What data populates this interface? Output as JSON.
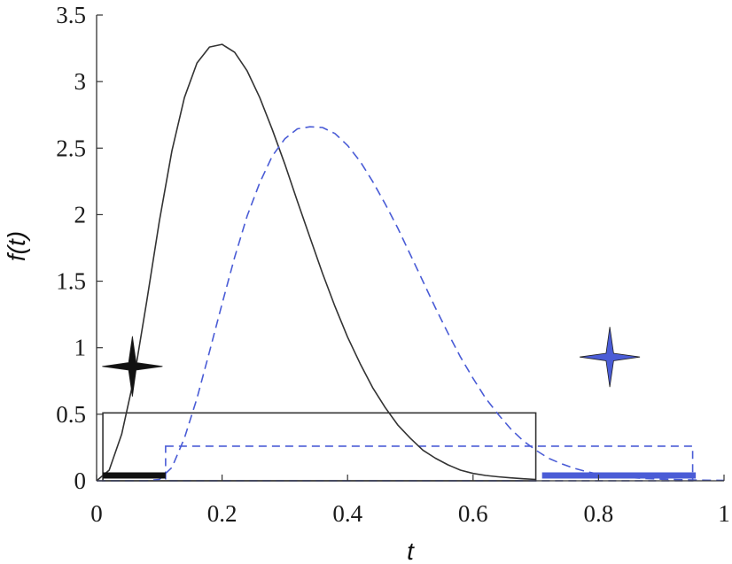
{
  "chart_data": {
    "type": "line",
    "xlabel": "t",
    "ylabel": "f(t)",
    "xlim": [
      0,
      1
    ],
    "ylim": [
      0,
      3.5
    ],
    "x_ticks": [
      "0",
      "0.2",
      "0.4",
      "0.6",
      "0.8",
      "1"
    ],
    "y_ticks": [
      "0",
      "0.5",
      "1",
      "1.5",
      "2",
      "2.5",
      "3",
      "3.5"
    ],
    "series": [
      {
        "style": "solid",
        "color": "#333333",
        "x": [
          0.0,
          0.02,
          0.04,
          0.06,
          0.08,
          0.1,
          0.12,
          0.14,
          0.16,
          0.18,
          0.2,
          0.22,
          0.24,
          0.26,
          0.28,
          0.3,
          0.32,
          0.34,
          0.36,
          0.38,
          0.4,
          0.42,
          0.44,
          0.46,
          0.48,
          0.5,
          0.52,
          0.54,
          0.56,
          0.58,
          0.6,
          0.62,
          0.64,
          0.66,
          0.68,
          0.7
        ],
        "y": [
          0.0,
          0.08,
          0.35,
          0.78,
          1.35,
          1.95,
          2.48,
          2.88,
          3.14,
          3.26,
          3.28,
          3.22,
          3.08,
          2.88,
          2.64,
          2.38,
          2.1,
          1.83,
          1.56,
          1.31,
          1.08,
          0.88,
          0.7,
          0.55,
          0.42,
          0.32,
          0.23,
          0.17,
          0.12,
          0.08,
          0.055,
          0.04,
          0.03,
          0.022,
          0.015,
          0.01
        ]
      },
      {
        "style": "dashed",
        "color": "#4a5cd6",
        "x": [
          0.0,
          0.04,
          0.08,
          0.1,
          0.12,
          0.14,
          0.16,
          0.18,
          0.2,
          0.22,
          0.24,
          0.26,
          0.28,
          0.3,
          0.32,
          0.34,
          0.36,
          0.38,
          0.4,
          0.42,
          0.44,
          0.46,
          0.48,
          0.5,
          0.52,
          0.54,
          0.56,
          0.58,
          0.6,
          0.62,
          0.64,
          0.66,
          0.68,
          0.7,
          0.72,
          0.74,
          0.76,
          0.78,
          0.8,
          0.82,
          0.84,
          0.86,
          0.88,
          0.9,
          0.92,
          0.94,
          0.96,
          0.98,
          1.0
        ],
        "y": [
          0.0,
          0.0,
          0.0,
          0.01,
          0.1,
          0.32,
          0.62,
          0.97,
          1.33,
          1.68,
          1.99,
          2.24,
          2.44,
          2.57,
          2.645,
          2.66,
          2.655,
          2.61,
          2.52,
          2.4,
          2.25,
          2.08,
          1.9,
          1.7,
          1.5,
          1.3,
          1.11,
          0.93,
          0.77,
          0.62,
          0.5,
          0.39,
          0.3,
          0.23,
          0.17,
          0.13,
          0.095,
          0.07,
          0.05,
          0.037,
          0.028,
          0.021,
          0.016,
          0.012,
          0.009,
          0.007,
          0.005,
          0.004,
          0.003
        ]
      }
    ],
    "boxes": [
      {
        "style": "solid",
        "color": "#333333",
        "x0": 0.01,
        "x1": 0.7,
        "y0": 0.0,
        "y1": 0.51
      },
      {
        "style": "dashed",
        "color": "#4a5cd6",
        "x0": 0.11,
        "x1": 0.95,
        "y0": 0.0,
        "y1": 0.26
      }
    ],
    "bars": [
      {
        "color": "#111111",
        "x0": 0.01,
        "x1": 0.11,
        "y": 0.04
      },
      {
        "color": "#4a5cd6",
        "x0": 0.71,
        "x1": 0.955,
        "y": 0.04
      }
    ],
    "markers": [
      {
        "shape": "four-point-star",
        "color": "#111111",
        "x": 0.057,
        "y": 0.86
      },
      {
        "shape": "four-point-star",
        "color": "#4a5cd6",
        "x": 0.818,
        "y": 0.93
      }
    ],
    "grid": false
  }
}
